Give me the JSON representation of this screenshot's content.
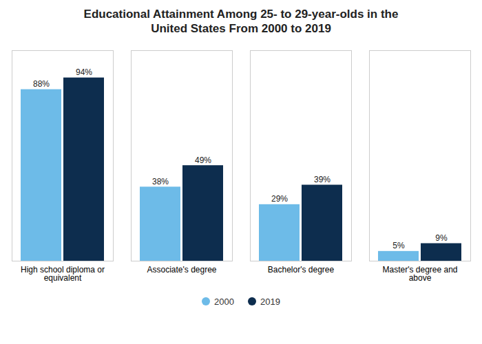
{
  "chart_data": {
    "type": "bar",
    "title": "Educational Attainment Among 25- to 29-year-olds in the\nUnited States From 2000 to 2019",
    "categories": [
      "High school diploma or\nequivalent",
      "Associate's degree",
      "Bachelor's degree",
      "Master's degree and\nabove"
    ],
    "series": [
      {
        "name": "2000",
        "color": "#6DBBE8",
        "values": [
          88,
          38,
          29,
          5
        ],
        "value_labels": [
          "88%",
          "38%",
          "29%",
          "5%"
        ]
      },
      {
        "name": "2019",
        "color": "#0D2D4E",
        "values": [
          94,
          49,
          39,
          9
        ],
        "value_labels": [
          "94%",
          "49%",
          "39%",
          "9%"
        ]
      }
    ],
    "ylim": [
      0,
      108
    ],
    "grid": false,
    "legend": "bottom",
    "data_labels": true,
    "tick_labels": "x"
  }
}
